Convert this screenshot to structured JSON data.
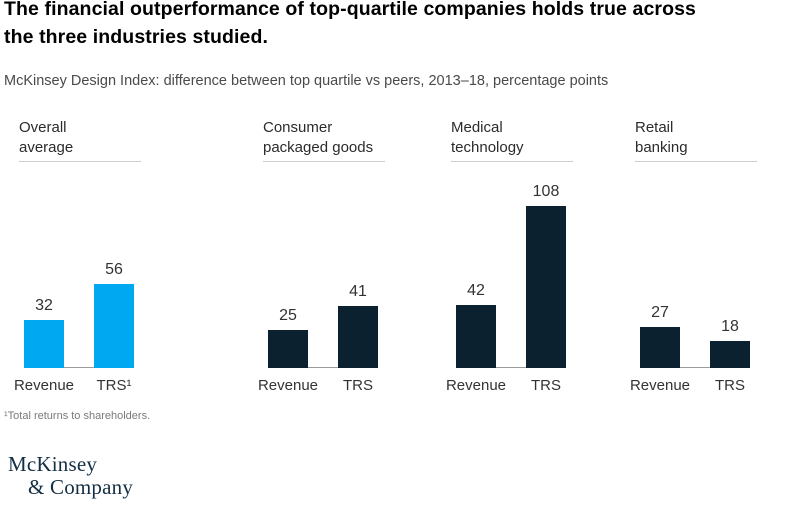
{
  "page": {
    "title_line1": "The financial outperformance of top-quartile companies holds true across",
    "title_line2": "the three industries studied.",
    "subtitle": "McKinsey Design Index: difference between top quartile vs peers, 2013–18, percentage points",
    "footnote": "¹Total returns to shareholders.",
    "logo_line1": "McKinsey",
    "logo_line2": "& Company"
  },
  "colors": {
    "accent_cyan": "#00a8f1",
    "deep_navy": "#0c2130",
    "logo_navy": "#142f44",
    "baseline_gray": "#9b9b9b",
    "rule_gray": "#cfcfcf"
  },
  "chart_data": {
    "type": "bar",
    "unit": "percentage points",
    "title": "McKinsey Design Index: difference between top quartile vs peers, 2013–18, percentage points",
    "ylim": [
      0,
      120
    ],
    "grid": false,
    "legend": "none",
    "groups": [
      {
        "label_line1": "Overall",
        "label_line2": "average",
        "color": "#00a8f1",
        "categories": [
          "Revenue",
          "TRS¹"
        ],
        "values": [
          32,
          56
        ]
      },
      {
        "label_line1": "Consumer",
        "label_line2": "packaged goods",
        "color": "#0c2130",
        "categories": [
          "Revenue",
          "TRS"
        ],
        "values": [
          25,
          41
        ]
      },
      {
        "label_line1": "Medical",
        "label_line2": "technology",
        "color": "#0c2130",
        "categories": [
          "Revenue",
          "TRS"
        ],
        "values": [
          42,
          108
        ]
      },
      {
        "label_line1": "Retail",
        "label_line2": "banking",
        "color": "#0c2130",
        "categories": [
          "Revenue",
          "TRS"
        ],
        "values": [
          27,
          18
        ]
      }
    ]
  }
}
